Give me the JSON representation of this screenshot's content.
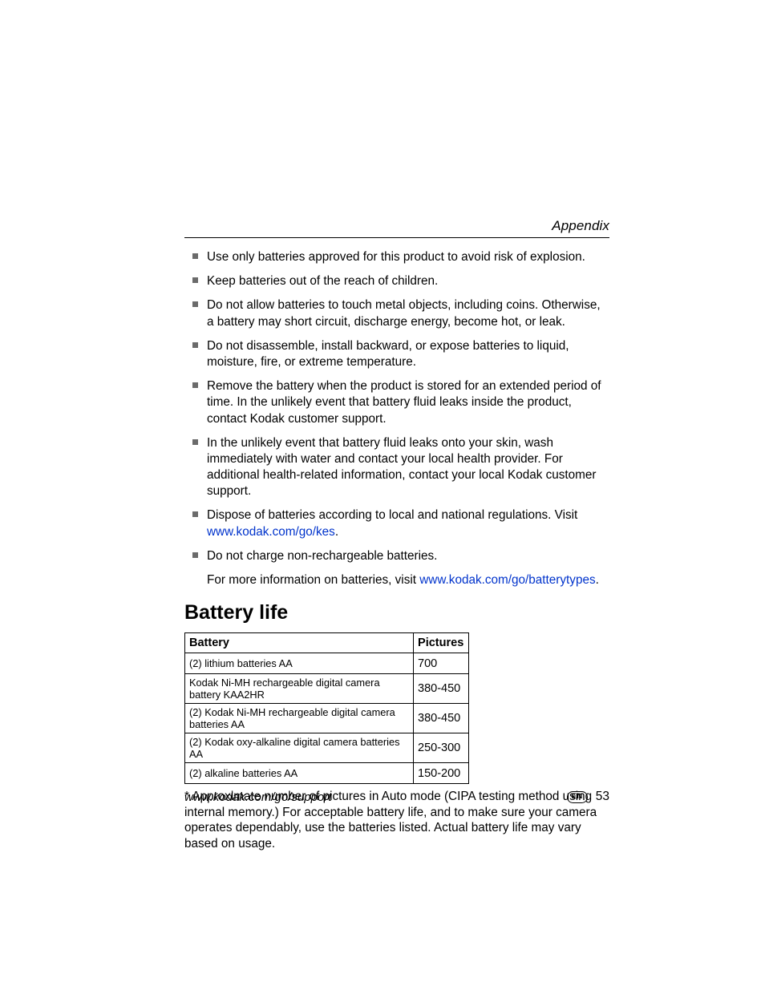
{
  "header": {
    "section_label": "Appendix"
  },
  "bullets": [
    {
      "text": "Use only batteries approved for this product to avoid risk of explosion."
    },
    {
      "text": "Keep batteries out of the reach of children."
    },
    {
      "text": "Do not allow batteries to touch metal objects, including coins. Otherwise, a battery may short circuit, discharge energy, become hot, or leak."
    },
    {
      "text": "Do not disassemble, install backward, or expose batteries to liquid, moisture, fire, or extreme temperature."
    },
    {
      "text": "Remove the battery when the product is stored for an extended period of time. In the unlikely event that battery fluid leaks inside the product, contact Kodak customer support."
    },
    {
      "text": "In the unlikely event that battery fluid leaks onto your skin, wash immediately with water and contact your local health provider. For additional health-related information, contact your local Kodak customer support."
    },
    {
      "pre": "Dispose of batteries according to local and national regulations. Visit ",
      "link": "www.kodak.com/go/kes",
      "post": "."
    },
    {
      "text": "Do not charge non-rechargeable batteries."
    }
  ],
  "trailing": {
    "pre": "For more information on batteries, visit ",
    "link": "www.kodak.com/go/batterytypes",
    "post": "."
  },
  "section_title": "Battery life",
  "table": {
    "columns": [
      "Battery",
      "Pictures"
    ],
    "rows": [
      [
        "(2) lithium batteries AA",
        "700"
      ],
      [
        "Kodak Ni-MH rechargeable digital camera battery KAA2HR",
        "380-450"
      ],
      [
        "(2) Kodak Ni-MH rechargeable digital camera batteries AA",
        "380-450"
      ],
      [
        "(2) Kodak oxy-alkaline digital camera batteries AA",
        "250-300"
      ],
      [
        "(2) alkaline batteries AA",
        "150-200"
      ]
    ]
  },
  "footnote": "* Approximate number of pictures in Auto mode (CIPA testing method using internal memory.) For acceptable battery life, and to make sure your camera operates dependably, use the batteries listed. Actual battery life may vary based on usage.",
  "footer": {
    "url": "www.kodak.com/go/support",
    "lang": "EN",
    "page": "53"
  },
  "colors": {
    "link_color": "#0033cc",
    "bullet_color": "#6b6b6b",
    "text_color": "#000000",
    "border_color": "#000000",
    "background": "#ffffff"
  },
  "typography": {
    "body_fontsize_pt": 11.5,
    "heading_fontsize_pt": 19,
    "table_header_fontsize_pt": 11,
    "table_cell_fontsize_pt": 9.5,
    "header_label_fontsize_pt": 12.5
  }
}
